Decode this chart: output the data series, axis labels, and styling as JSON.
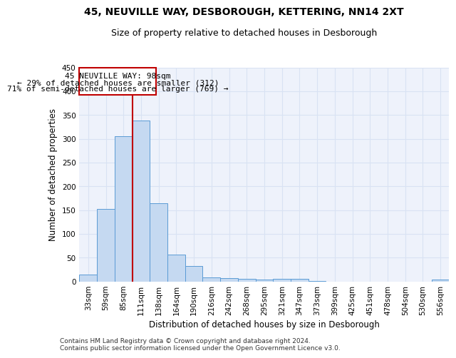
{
  "title1": "45, NEUVILLE WAY, DESBOROUGH, KETTERING, NN14 2XT",
  "title2": "Size of property relative to detached houses in Desborough",
  "xlabel": "Distribution of detached houses by size in Desborough",
  "ylabel": "Number of detached properties",
  "categories": [
    "33sqm",
    "59sqm",
    "85sqm",
    "111sqm",
    "138sqm",
    "164sqm",
    "190sqm",
    "216sqm",
    "242sqm",
    "268sqm",
    "295sqm",
    "321sqm",
    "347sqm",
    "373sqm",
    "399sqm",
    "425sqm",
    "451sqm",
    "478sqm",
    "504sqm",
    "530sqm",
    "556sqm"
  ],
  "values": [
    15,
    153,
    305,
    338,
    165,
    57,
    33,
    9,
    7,
    5,
    4,
    5,
    5,
    1,
    0,
    0,
    0,
    0,
    0,
    0,
    4
  ],
  "bar_color": "#c5d9f1",
  "bar_edge_color": "#5b9bd5",
  "grid_color": "#d9e2f3",
  "annotation_box_color": "#c00000",
  "annotation_text_line1": "45 NEUVILLE WAY: 98sqm",
  "annotation_text_line2": "← 29% of detached houses are smaller (312)",
  "annotation_text_line3": "71% of semi-detached houses are larger (769) →",
  "vline_color": "#c00000",
  "footer_line1": "Contains HM Land Registry data © Crown copyright and database right 2024.",
  "footer_line2": "Contains public sector information licensed under the Open Government Licence v3.0.",
  "ylim": [
    0,
    450
  ],
  "title1_fontsize": 10,
  "title2_fontsize": 9,
  "xlabel_fontsize": 8.5,
  "ylabel_fontsize": 8.5,
  "tick_fontsize": 7.5,
  "annotation_fontsize": 8,
  "footer_fontsize": 6.5,
  "bg_color": "#eef2fb"
}
